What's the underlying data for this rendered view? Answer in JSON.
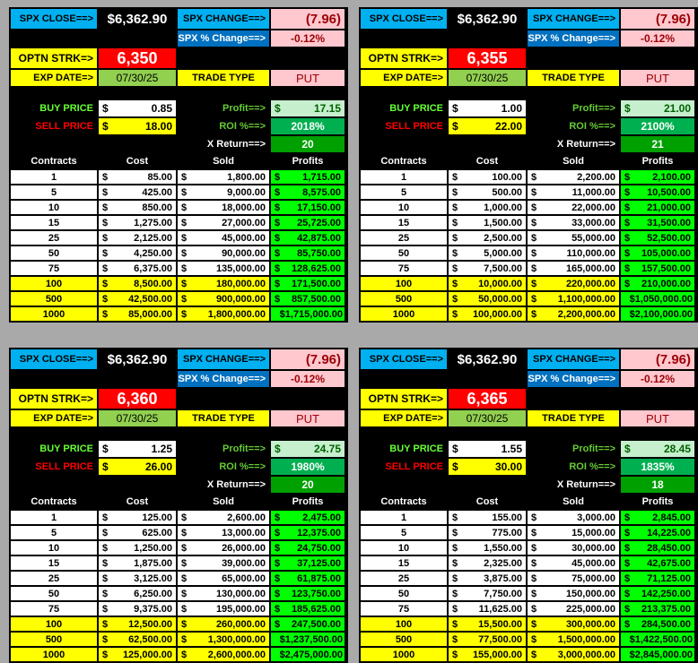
{
  "labels": {
    "spx_close": "SPX CLOSE==>",
    "spx_change": "SPX CHANGE==>",
    "spx_pct": "SPX % Change==>",
    "strike": "OPTN STRK=>",
    "exp": "EXP DATE=>",
    "trade_type": "TRADE TYPE",
    "buy": "BUY PRICE",
    "sell": "SELL PRICE",
    "profit": "Profit==>",
    "roi": "ROI %==>",
    "xreturn": "X Return==>",
    "currency": "$",
    "headers": [
      "Contracts",
      "Cost",
      "Sold",
      "Profits"
    ]
  },
  "colors": {
    "header_cyan": "#00b0f0",
    "pct_blue": "#0070c0",
    "strike_red": "#ff0000",
    "highlight_yellow": "#ffff00",
    "profits_green": "#00ff00",
    "roi_green": "#00b050"
  },
  "panels": [
    {
      "spx_close": "$6,362.90",
      "spx_change": "(7.96)",
      "spx_pct": "-0.12%",
      "strike": "6,350",
      "exp_date": "07/30/25",
      "trade_type": "PUT",
      "buy": "0.85",
      "sell": "18.00",
      "profit": "17.15",
      "roi": "2018%",
      "xreturn": "20",
      "rows": [
        [
          "1",
          "85.00",
          "1,800.00",
          "1,715.00"
        ],
        [
          "5",
          "425.00",
          "9,000.00",
          "8,575.00"
        ],
        [
          "10",
          "850.00",
          "18,000.00",
          "17,150.00"
        ],
        [
          "15",
          "1,275.00",
          "27,000.00",
          "25,725.00"
        ],
        [
          "25",
          "2,125.00",
          "45,000.00",
          "42,875.00"
        ],
        [
          "50",
          "4,250.00",
          "90,000.00",
          "85,750.00"
        ],
        [
          "75",
          "6,375.00",
          "135,000.00",
          "128,625.00"
        ],
        [
          "100",
          "8,500.00",
          "180,000.00",
          "171,500.00"
        ],
        [
          "500",
          "42,500.00",
          "900,000.00",
          "857,500.00"
        ],
        [
          "1000",
          "85,000.00",
          "1,800,000.00",
          "$1,715,000.00"
        ]
      ]
    },
    {
      "spx_close": "$6,362.90",
      "spx_change": "(7.96)",
      "spx_pct": "-0.12%",
      "strike": "6,355",
      "exp_date": "07/30/25",
      "trade_type": "PUT",
      "buy": "1.00",
      "sell": "22.00",
      "profit": "21.00",
      "roi": "2100%",
      "xreturn": "21",
      "rows": [
        [
          "1",
          "100.00",
          "2,200.00",
          "2,100.00"
        ],
        [
          "5",
          "500.00",
          "11,000.00",
          "10,500.00"
        ],
        [
          "10",
          "1,000.00",
          "22,000.00",
          "21,000.00"
        ],
        [
          "15",
          "1,500.00",
          "33,000.00",
          "31,500.00"
        ],
        [
          "25",
          "2,500.00",
          "55,000.00",
          "52,500.00"
        ],
        [
          "50",
          "5,000.00",
          "110,000.00",
          "105,000.00"
        ],
        [
          "75",
          "7,500.00",
          "165,000.00",
          "157,500.00"
        ],
        [
          "100",
          "10,000.00",
          "220,000.00",
          "210,000.00"
        ],
        [
          "500",
          "50,000.00",
          "1,100,000.00",
          "$1,050,000.00"
        ],
        [
          "1000",
          "100,000.00",
          "2,200,000.00",
          "$2,100,000.00"
        ]
      ]
    },
    {
      "spx_close": "$6,362.90",
      "spx_change": "(7.96)",
      "spx_pct": "-0.12%",
      "strike": "6,360",
      "exp_date": "07/30/25",
      "trade_type": "PUT",
      "buy": "1.25",
      "sell": "26.00",
      "profit": "24.75",
      "roi": "1980%",
      "xreturn": "20",
      "rows": [
        [
          "1",
          "125.00",
          "2,600.00",
          "2,475.00"
        ],
        [
          "5",
          "625.00",
          "13,000.00",
          "12,375.00"
        ],
        [
          "10",
          "1,250.00",
          "26,000.00",
          "24,750.00"
        ],
        [
          "15",
          "1,875.00",
          "39,000.00",
          "37,125.00"
        ],
        [
          "25",
          "3,125.00",
          "65,000.00",
          "61,875.00"
        ],
        [
          "50",
          "6,250.00",
          "130,000.00",
          "123,750.00"
        ],
        [
          "75",
          "9,375.00",
          "195,000.00",
          "185,625.00"
        ],
        [
          "100",
          "12,500.00",
          "260,000.00",
          "247,500.00"
        ],
        [
          "500",
          "62,500.00",
          "1,300,000.00",
          "$1,237,500.00"
        ],
        [
          "1000",
          "125,000.00",
          "2,600,000.00",
          "$2,475,000.00"
        ]
      ]
    },
    {
      "spx_close": "$6,362.90",
      "spx_change": "(7.96)",
      "spx_pct": "-0.12%",
      "strike": "6,365",
      "exp_date": "07/30/25",
      "trade_type": "PUT",
      "buy": "1.55",
      "sell": "30.00",
      "profit": "28.45",
      "roi": "1835%",
      "xreturn": "18",
      "rows": [
        [
          "1",
          "155.00",
          "3,000.00",
          "2,845.00"
        ],
        [
          "5",
          "775.00",
          "15,000.00",
          "14,225.00"
        ],
        [
          "10",
          "1,550.00",
          "30,000.00",
          "28,450.00"
        ],
        [
          "15",
          "2,325.00",
          "45,000.00",
          "42,675.00"
        ],
        [
          "25",
          "3,875.00",
          "75,000.00",
          "71,125.00"
        ],
        [
          "50",
          "7,750.00",
          "150,000.00",
          "142,250.00"
        ],
        [
          "75",
          "11,625.00",
          "225,000.00",
          "213,375.00"
        ],
        [
          "100",
          "15,500.00",
          "300,000.00",
          "284,500.00"
        ],
        [
          "500",
          "77,500.00",
          "1,500,000.00",
          "$1,422,500.00"
        ],
        [
          "1000",
          "155,000.00",
          "3,000,000.00",
          "$2,845,000.00"
        ]
      ]
    }
  ]
}
